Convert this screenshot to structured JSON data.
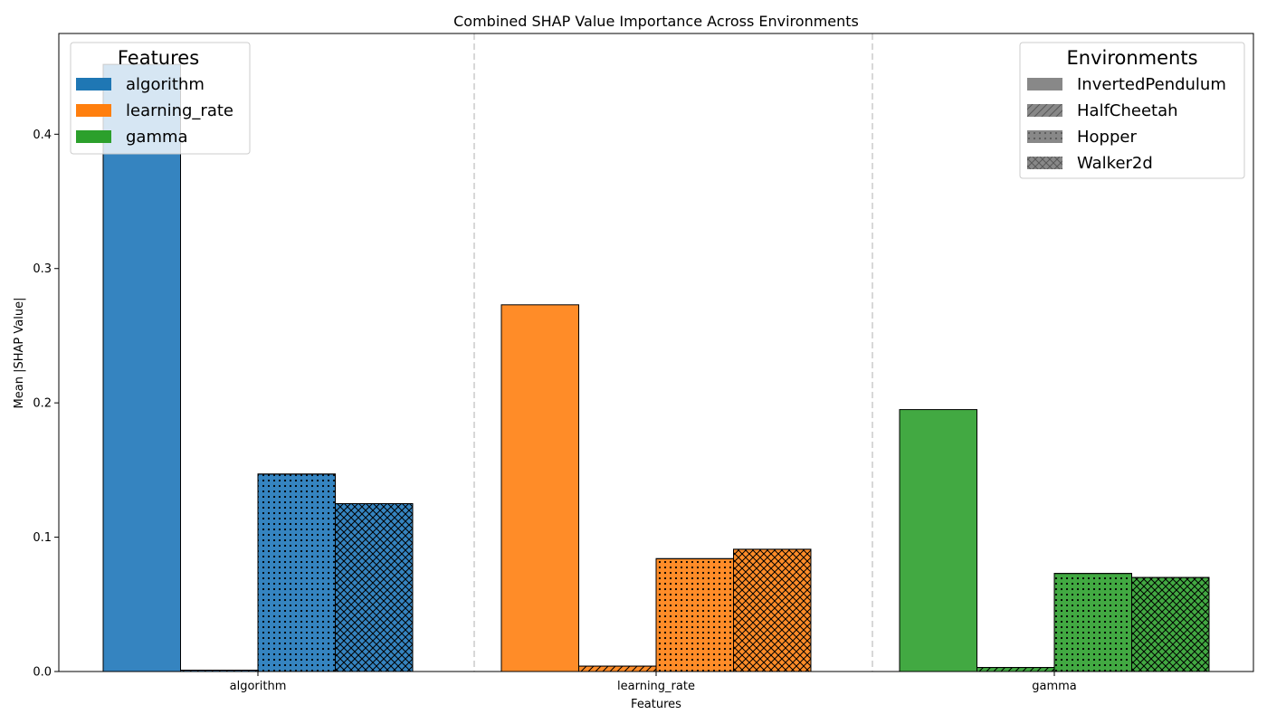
{
  "chart_data": {
    "type": "bar",
    "title": "Combined SHAP Value Importance Across Environments",
    "xlabel": "Features",
    "ylabel": "Mean |SHAP Value|",
    "categories": [
      "algorithm",
      "learning_rate",
      "gamma"
    ],
    "series": [
      {
        "name": "InvertedPendulum",
        "values": [
          0.452,
          0.273,
          0.195
        ],
        "hatch": "none"
      },
      {
        "name": "HalfCheetah",
        "values": [
          0.001,
          0.004,
          0.003
        ],
        "hatch": "diagonal"
      },
      {
        "name": "Hopper",
        "values": [
          0.147,
          0.084,
          0.073
        ],
        "hatch": "dots"
      },
      {
        "name": "Walker2d",
        "values": [
          0.125,
          0.091,
          0.07
        ],
        "hatch": "crosshatch"
      }
    ],
    "ylim": [
      0,
      0.475
    ],
    "yticks": [
      "0.0",
      "0.1",
      "0.2",
      "0.3",
      "0.4"
    ],
    "grid": false,
    "category_separators": true,
    "legend_features": {
      "title": "Features",
      "placement": "top-left",
      "items": [
        {
          "label": "algorithm",
          "color": "#1f77b4"
        },
        {
          "label": "learning_rate",
          "color": "#ff7f0e"
        },
        {
          "label": "gamma",
          "color": "#2ca02c"
        }
      ]
    },
    "legend_environments": {
      "title": "Environments",
      "placement": "top-right",
      "items": [
        "InvertedPendulum",
        "HalfCheetah",
        "Hopper",
        "Walker2d"
      ]
    },
    "colors": {
      "algorithm": "#3584c0",
      "learning_rate": "#ff8c28",
      "gamma": "#42a942",
      "legend_env_swatch": "#888888",
      "separator": "#cccccc"
    }
  }
}
